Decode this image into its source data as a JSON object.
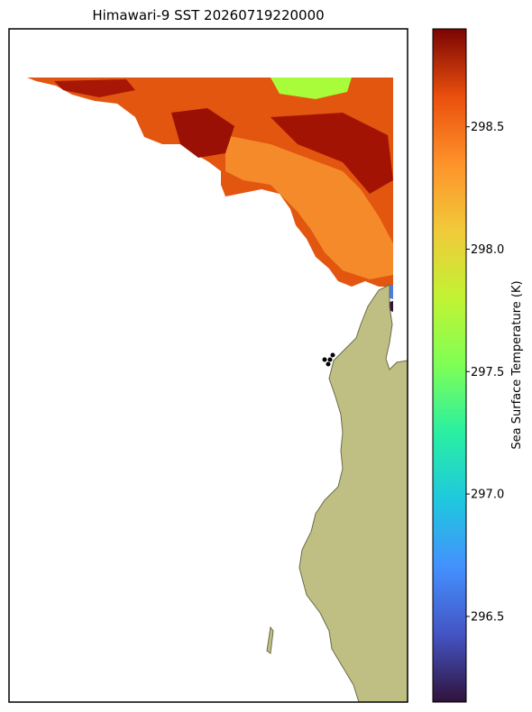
{
  "chart_data": {
    "type": "map",
    "title": "Himawari-9 SST 20260719220000",
    "colorbar_label": "Sea Surface Temperature (K)",
    "colorbar_lim": [
      296.15,
      298.9
    ],
    "colorbar_ticks": [
      296.5,
      {
        "value": 297,
        "label": "297.0"
      },
      297.5,
      {
        "value": 298,
        "label": "298.0"
      },
      298.5
    ],
    "colormap": "turbo"
  }
}
